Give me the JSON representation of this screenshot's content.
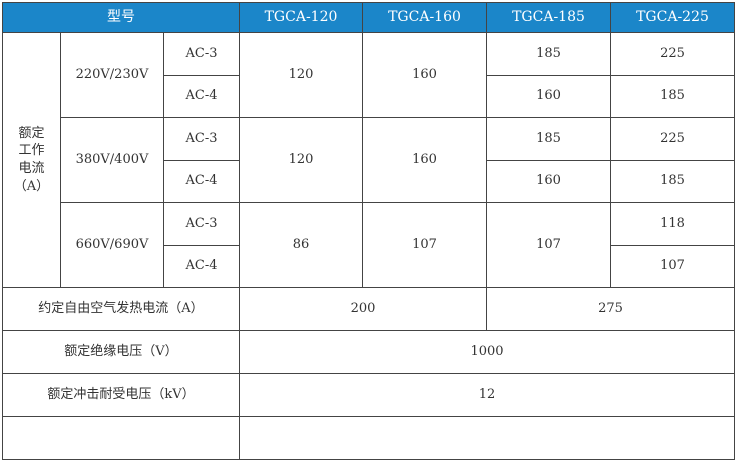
{
  "header": {
    "model_label": "型号",
    "models": [
      "TGCA-120",
      "TGCA-160",
      "TGCA-185",
      "TGCA-225"
    ],
    "header_color": "#1b86c9"
  },
  "rated_current": {
    "label_lines": [
      "额定",
      "工作",
      "电流",
      "（A）"
    ],
    "groups": [
      {
        "voltage": "220V/230V",
        "cat": [
          "AC-3",
          "AC-4"
        ],
        "v120": "120",
        "v160": "160",
        "v185": [
          "185",
          "160"
        ],
        "v225": [
          "225",
          "185"
        ]
      },
      {
        "voltage": "380V/400V",
        "cat": [
          "AC-3",
          "AC-4"
        ],
        "v120": "120",
        "v160": "160",
        "v185": [
          "185",
          "160"
        ],
        "v225": [
          "225",
          "185"
        ]
      },
      {
        "voltage": "660V/690V",
        "cat": [
          "AC-3",
          "AC-4"
        ],
        "v120": "86",
        "v160": "107",
        "v185": "107",
        "v225": [
          "118",
          "107"
        ]
      }
    ]
  },
  "thermal": {
    "label": "约定自由空气发热电流（A）",
    "a": "200",
    "b": "275"
  },
  "insulation": {
    "label": "额定绝缘电压（V）",
    "value": "1000"
  },
  "impulse": {
    "label": "额定冲击耐受电压（kV）",
    "value": "12"
  }
}
